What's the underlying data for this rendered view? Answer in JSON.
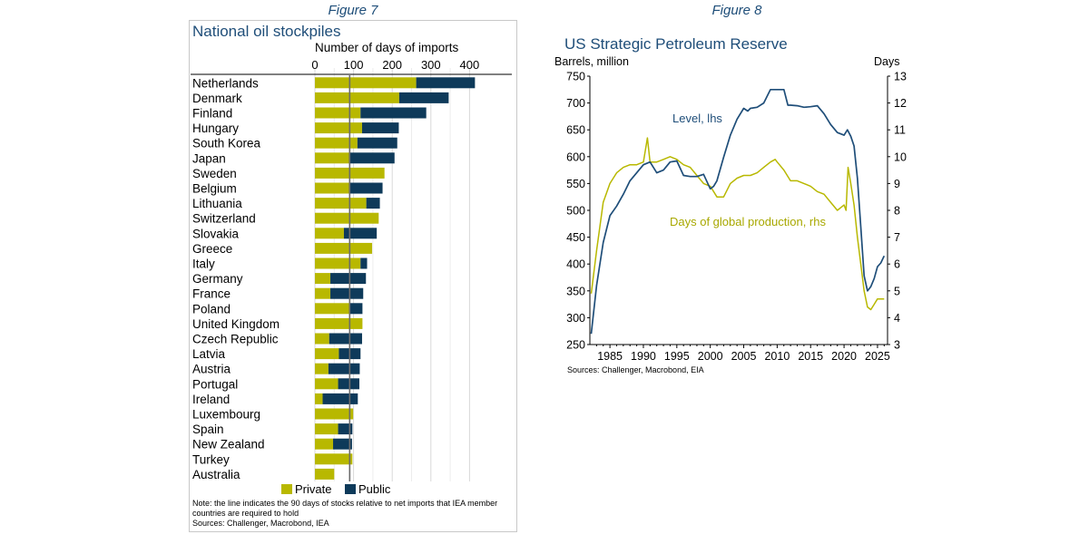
{
  "figures": {
    "fig7_label": "Figure 7",
    "fig8_label": "Figure 8"
  },
  "colors": {
    "private": "#b8b800",
    "public": "#0e3a5a",
    "navy": "#1f4e79",
    "olive": "#b8b800"
  },
  "chart_data": [
    {
      "type": "bar",
      "orientation": "horizontal",
      "stacked": true,
      "title": "National oil stockpiles",
      "xlabel": "Number of days of imports",
      "xlim": [
        0,
        440
      ],
      "xticks": [
        0,
        100,
        200,
        300,
        400
      ],
      "reference_line": 90,
      "categories": [
        "Netherlands",
        "Denmark",
        "Finland",
        "Hungary",
        "South Korea",
        "Japan",
        "Sweden",
        "Belgium",
        "Lithuania",
        "Switzerland",
        "Slovakia",
        "Greece",
        "Italy",
        "Germany",
        "France",
        "Poland",
        "United Kingdom",
        "Czech Republic",
        "Latvia",
        "Austria",
        "Portugal",
        "Ireland",
        "Luxembourg",
        "Spain",
        "New Zealand",
        "Turkey",
        "Australia"
      ],
      "series": [
        {
          "name": "Private",
          "values": [
            262,
            218,
            118,
            122,
            110,
            88,
            180,
            88,
            133,
            165,
            75,
            148,
            118,
            40,
            40,
            90,
            123,
            37,
            62,
            35,
            60,
            20,
            99,
            60,
            47,
            97,
            50
          ]
        },
        {
          "name": "Public",
          "values": [
            152,
            128,
            170,
            95,
            103,
            118,
            0,
            87,
            35,
            0,
            85,
            0,
            17,
            92,
            85,
            33,
            0,
            85,
            56,
            81,
            55,
            91,
            0,
            37,
            49,
            0,
            0
          ]
        }
      ],
      "legend": [
        "Private",
        "Public"
      ],
      "note": "Note: the line indicates the 90 days of stocks relative to net imports that IEA member countries are required to hold",
      "source": "Sources: Challenger, Macrobond, IEA"
    },
    {
      "type": "line",
      "title": "US Strategic Petroleum Reserve",
      "ylabel_left": "Barrels, million",
      "ylabel_right": "Days",
      "ylim_left": [
        250,
        750
      ],
      "yticks_left": [
        250,
        300,
        350,
        400,
        450,
        500,
        550,
        600,
        650,
        700,
        750
      ],
      "ylim_right": [
        3,
        13
      ],
      "yticks_right": [
        3,
        4,
        5,
        6,
        7,
        8,
        9,
        10,
        11,
        12,
        13
      ],
      "xlim": [
        1982,
        2026.5
      ],
      "xticks": [
        1985,
        1990,
        1995,
        2000,
        2005,
        2010,
        2015,
        2020,
        2025
      ],
      "series": [
        {
          "name": "Level, lhs",
          "axis": "left",
          "x": [
            1982.2,
            1983,
            1984,
            1985,
            1986,
            1987,
            1988,
            1989,
            1990,
            1991,
            1992,
            1993,
            1994,
            1995,
            1996,
            1997,
            1998,
            1999,
            2000,
            2000.5,
            2001,
            2002,
            2003,
            2004,
            2005,
            2005.6,
            2006,
            2007,
            2008,
            2009,
            2010,
            2011,
            2011.6,
            2012,
            2013,
            2014,
            2015,
            2016,
            2017,
            2018,
            2019,
            2020,
            2020.5,
            2021,
            2021.5,
            2022,
            2022.5,
            2023,
            2023.5,
            2024,
            2024.5,
            2025,
            2025.5,
            2026
          ],
          "y": [
            270,
            360,
            440,
            490,
            508,
            530,
            555,
            570,
            585,
            590,
            570,
            575,
            590,
            592,
            565,
            563,
            563,
            567,
            540,
            545,
            555,
            599,
            640,
            670,
            690,
            685,
            690,
            692,
            700,
            725,
            725,
            725,
            696,
            696,
            695,
            692,
            693,
            695,
            680,
            660,
            645,
            640,
            650,
            638,
            620,
            560,
            470,
            378,
            350,
            358,
            373,
            395,
            402,
            415
          ]
        },
        {
          "name": "Days of global production, rhs",
          "axis": "right",
          "x": [
            1982.2,
            1983,
            1984,
            1985,
            1986,
            1987,
            1988,
            1989,
            1990,
            1990.6,
            1991,
            1992,
            1993,
            1994,
            1995,
            1996,
            1997,
            1998,
            1999,
            2000,
            2001,
            2002,
            2003,
            2004,
            2005,
            2006,
            2007,
            2008,
            2009,
            2009.7,
            2010,
            2011,
            2012,
            2013,
            2014,
            2015,
            2016,
            2017,
            2018,
            2019,
            2020,
            2020.3,
            2020.6,
            2021,
            2021.5,
            2022,
            2022.5,
            2023,
            2023.5,
            2024,
            2024.5,
            2025,
            2025.5,
            2026
          ],
          "y": [
            4.9,
            6.5,
            8.3,
            9.0,
            9.4,
            9.6,
            9.7,
            9.7,
            9.8,
            10.7,
            9.8,
            9.8,
            9.9,
            10.0,
            9.9,
            9.7,
            9.6,
            9.3,
            9.0,
            8.9,
            8.5,
            8.5,
            9.0,
            9.2,
            9.3,
            9.3,
            9.4,
            9.6,
            9.8,
            9.9,
            9.8,
            9.5,
            9.1,
            9.1,
            9.0,
            8.9,
            8.7,
            8.6,
            8.3,
            8.0,
            8.2,
            8.0,
            9.6,
            9.0,
            8.2,
            7.0,
            6.0,
            5.0,
            4.4,
            4.3,
            4.5,
            4.7,
            4.7,
            4.7
          ]
        }
      ],
      "annotations": [
        "Level, lhs",
        "Days of global production, rhs"
      ],
      "source": "Sources: Challenger, Macrobond, EIA"
    }
  ]
}
